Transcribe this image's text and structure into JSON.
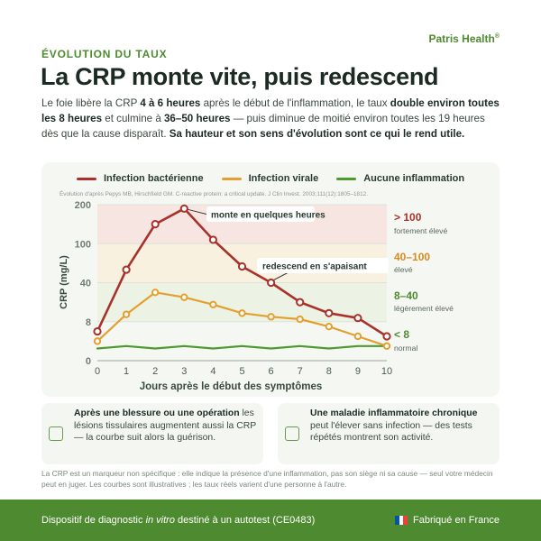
{
  "brand": {
    "name": "Patris Health",
    "mark": "®"
  },
  "eyebrow": "ÉVOLUTION DU TAUX",
  "title": "La CRP monte vite, puis redescend",
  "intro": {
    "p1": "Le foie libère la CRP ",
    "b1": "4 à 6 heures",
    "p2": " après le début de l'inflammation, le taux ",
    "b2": "double environ toutes les 8 heures",
    "p3": " et culmine à ",
    "b3": "36–50 heures",
    "p4": " — puis diminue de moitié environ toutes les 19 heures dès que la cause disparaît. ",
    "b4": "Sa hauteur et son sens d'évolution sont ce qui le rend utile."
  },
  "legend": [
    {
      "label": "Infection bactérienne",
      "color": "#a8322b"
    },
    {
      "label": "Infection virale",
      "color": "#e3a030"
    },
    {
      "label": "Aucune inflammation",
      "color": "#4e9a2f"
    }
  ],
  "source": "Évolution d'après Pepys MB, Hirschfield GM. C-reactive protein: a critical update. J Clin Invest. 2003;111(12):1805–1812.",
  "chart_data": {
    "type": "line",
    "title": "",
    "xlabel": "Jours après le début des symptômes",
    "ylabel": "CRP (mg/L)",
    "x": [
      0,
      1,
      2,
      3,
      4,
      5,
      6,
      7,
      8,
      9,
      10
    ],
    "y_ticks": [
      0,
      8,
      40,
      100,
      200
    ],
    "ylim": [
      0,
      200
    ],
    "y_scale": "nonlinear (ticks 0, 8, 40, 100, 200 evenly spaced)",
    "series": [
      {
        "name": "Infection bactérienne",
        "color": "#a8322b",
        "values": [
          6,
          60,
          150,
          190,
          110,
          65,
          40,
          24,
          15,
          11,
          5
        ]
      },
      {
        "name": "Infection virale",
        "color": "#e3a030",
        "values": [
          4,
          14,
          32,
          28,
          22,
          15,
          12,
          10,
          7,
          5,
          3
        ]
      },
      {
        "name": "Aucune inflammation",
        "color": "#4e9a2f",
        "values": [
          2.5,
          3,
          2.5,
          3,
          2.5,
          3,
          2.5,
          3,
          2.5,
          3,
          3
        ]
      }
    ],
    "zones": [
      {
        "label": "> 100",
        "sub": "fortement élevé",
        "color": "#a8322b",
        "from": 100,
        "to": 200,
        "fill": "#f7e5e1"
      },
      {
        "label": "40–100",
        "sub": "élevé",
        "color": "#d98a20",
        "from": 40,
        "to": 100,
        "fill": "#f8f1e0"
      },
      {
        "label": "8–40",
        "sub": "légèrement élevé",
        "color": "#4e8a2f",
        "from": 8,
        "to": 40,
        "fill": "#ecf3e4"
      },
      {
        "label": "< 8",
        "sub": "normal",
        "color": "#4e8a2f",
        "from": 0,
        "to": 8,
        "fill": "#f5f7f3"
      }
    ],
    "annotations": [
      {
        "text": "monte en quelques heures",
        "x": 3,
        "y": 190
      },
      {
        "text": "redescend en s'apaisant",
        "x": 6,
        "y": 40
      }
    ],
    "grid": true,
    "legend_position": "top-center"
  },
  "cards": [
    {
      "icon": "bandage-icon",
      "bold": "Après une blessure ou une opération",
      "text": " les lésions tissulaires augmentent aussi la CRP — la courbe suit alors la guérison."
    },
    {
      "icon": "calendar-icon",
      "bold": "Une maladie inflammatoire chronique",
      "text": " peut l'élever sans infection — des tests répétés montrent son activité."
    }
  ],
  "disclaimer": "La CRP est un marqueur non spécifique : elle indique la présence d'une inflammation, pas son siège ni sa cause — seul votre médecin peut en juger. Les courbes sont illustratives ; les taux réels varient d'une personne à l'autre.",
  "footer": {
    "left_prefix": "Dispositif de diagnostic ",
    "left_italic": "in vitro",
    "left_suffix": " destiné à un autotest (CE0483)",
    "right": "Fabriqué en France",
    "flag_colors": [
      "#0055a4",
      "#ffffff",
      "#ef4135"
    ]
  }
}
